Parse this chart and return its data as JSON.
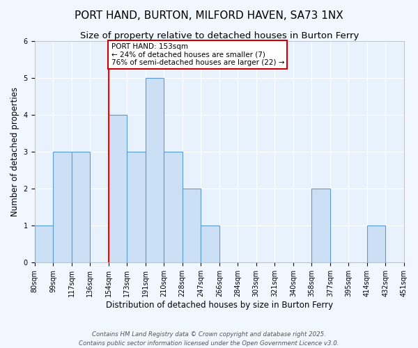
{
  "title": "PORT HAND, BURTON, MILFORD HAVEN, SA73 1NX",
  "subtitle": "Size of property relative to detached houses in Burton Ferry",
  "xlabel": "Distribution of detached houses by size in Burton Ferry",
  "ylabel": "Number of detached properties",
  "bin_edges": [
    "80sqm",
    "99sqm",
    "117sqm",
    "136sqm",
    "154sqm",
    "173sqm",
    "191sqm",
    "210sqm",
    "228sqm",
    "247sqm",
    "266sqm",
    "284sqm",
    "303sqm",
    "321sqm",
    "340sqm",
    "358sqm",
    "377sqm",
    "395sqm",
    "414sqm",
    "432sqm",
    "451sqm"
  ],
  "bar_heights": [
    1,
    3,
    3,
    0,
    4,
    3,
    5,
    3,
    2,
    1,
    0,
    0,
    0,
    0,
    0,
    2,
    0,
    0,
    1,
    0
  ],
  "bar_color": "#cce0f5",
  "bar_edge_color": "#5b9bd5",
  "red_line_bin": 4,
  "annotation_title": "PORT HAND: 153sqm",
  "annotation_line1": "← 24% of detached houses are smaller (7)",
  "annotation_line2": "76% of semi-detached houses are larger (22) →",
  "ylim": [
    0,
    6
  ],
  "yticks": [
    0,
    1,
    2,
    3,
    4,
    5,
    6
  ],
  "footnote1": "Contains HM Land Registry data © Crown copyright and database right 2025.",
  "footnote2": "Contains public sector information licensed under the Open Government Licence v3.0.",
  "bg_color": "#f0f7ff",
  "plot_bg_color": "#e8f2fd",
  "grid_color": "#ffffff",
  "title_fontsize": 11,
  "subtitle_fontsize": 9.5,
  "axis_label_fontsize": 8.5,
  "tick_fontsize": 7,
  "annotation_box_color": "#ffffff",
  "annotation_box_edge": "#cc0000"
}
